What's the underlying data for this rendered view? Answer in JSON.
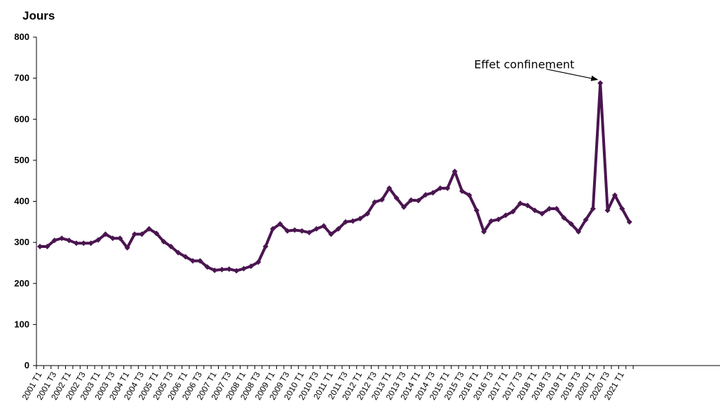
{
  "chart_data": {
    "type": "line",
    "title": "",
    "xlabel": "",
    "ylabel": "Jours",
    "ylim": [
      0,
      800
    ],
    "yticks": [
      0,
      100,
      200,
      300,
      400,
      500,
      600,
      700,
      800
    ],
    "grid": false,
    "legend": "none",
    "colors": {
      "line": "#4a1550",
      "axis": "#000000"
    },
    "x": [
      "2001 T1",
      "2001 T2",
      "2001 T3",
      "2001 T4",
      "2002 T1",
      "2002 T2",
      "2002 T3",
      "2002 T4",
      "2003 T1",
      "2003 T2",
      "2003 T3",
      "2003 T4",
      "2004 T1",
      "2004 T2",
      "2004 T3",
      "2004 T4",
      "2005 T1",
      "2005 T2",
      "2005 T3",
      "2005 T4",
      "2006 T1",
      "2006 T2",
      "2006 T3",
      "2006 T4",
      "2007 T1",
      "2007 T2",
      "2007 T3",
      "2007 T4",
      "2008 T1",
      "2008 T2",
      "2008 T3",
      "2008 T4",
      "2009 T1",
      "2009 T2",
      "2009 T3",
      "2009 T4",
      "2010 T1",
      "2010 T2",
      "2010 T3",
      "2010 T4",
      "2011 T1",
      "2011 T2",
      "2011 T3",
      "2011 T4",
      "2012 T1",
      "2012 T2",
      "2012 T3",
      "2012 T4",
      "2013 T1",
      "2013 T2",
      "2013 T3",
      "2013 T4",
      "2014 T1",
      "2014 T2",
      "2014 T3",
      "2014 T4",
      "2015 T1",
      "2015 T2",
      "2015 T3",
      "2015 T4",
      "2016 T1",
      "2016 T2",
      "2016 T3",
      "2016 T4",
      "2017 T1",
      "2017 T2",
      "2017 T3",
      "2017 T4",
      "2018 T1",
      "2018 T2",
      "2018 T3",
      "2018 T4",
      "2019 T1",
      "2019 T2",
      "2019 T3",
      "2019 T4",
      "2020 T1",
      "2020 T2",
      "2020 T3",
      "2020 T4",
      "2021 T1",
      "2021 T2"
    ],
    "series": [
      {
        "values": [
          290,
          290,
          305,
          310,
          305,
          298,
          298,
          298,
          306,
          320,
          310,
          310,
          287,
          320,
          320,
          333,
          322,
          302,
          290,
          275,
          265,
          255,
          255,
          240,
          232,
          234,
          235,
          231,
          236,
          242,
          252,
          290,
          333,
          345,
          328,
          330,
          328,
          324,
          333,
          340,
          320,
          333,
          350,
          352,
          358,
          370,
          398,
          404,
          432,
          408,
          386,
          403,
          402,
          416,
          421,
          432,
          432,
          473,
          425,
          415,
          378,
          326,
          352,
          356,
          366,
          375,
          395,
          390,
          378,
          370,
          382,
          382,
          360,
          345,
          326,
          355,
          382,
          688,
          378,
          415,
          382,
          350
        ]
      }
    ],
    "annotations": [
      {
        "text": "Effet confinement",
        "target_x": "2020 T2",
        "target_y": 688
      }
    ]
  }
}
